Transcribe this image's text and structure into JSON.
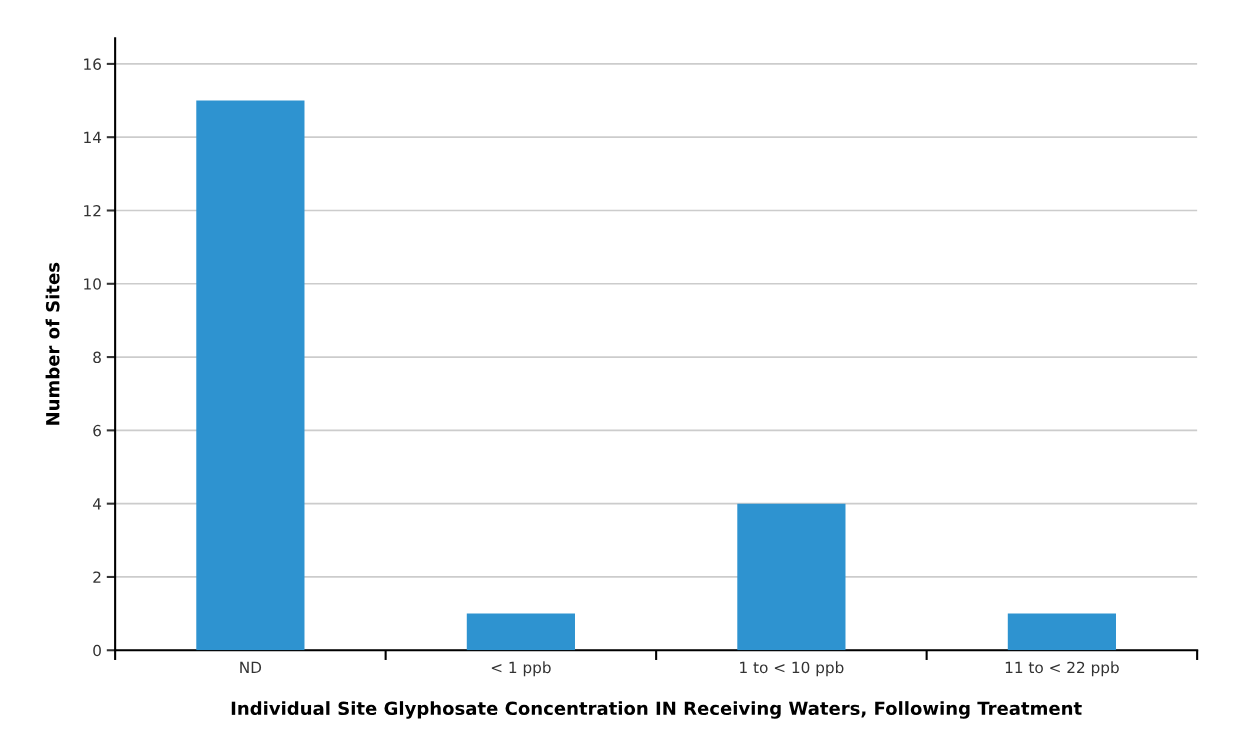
{
  "chart_data": {
    "type": "bar",
    "xlabel": "Individual Site Glyphosate Concentration IN Receiving Waters, Following Treatment",
    "ylabel": "Number of Sites",
    "categories": [
      "ND",
      "< 1 ppb",
      "1 to < 10 ppb",
      "11 to < 22 ppb"
    ],
    "values": [
      15,
      1,
      4,
      1
    ],
    "color": "#2e93d0",
    "ylim": [
      0,
      16.7
    ],
    "yticks": [
      0,
      2,
      4,
      6,
      8,
      10,
      12,
      14,
      16
    ],
    "grid": "y",
    "legend": false
  }
}
